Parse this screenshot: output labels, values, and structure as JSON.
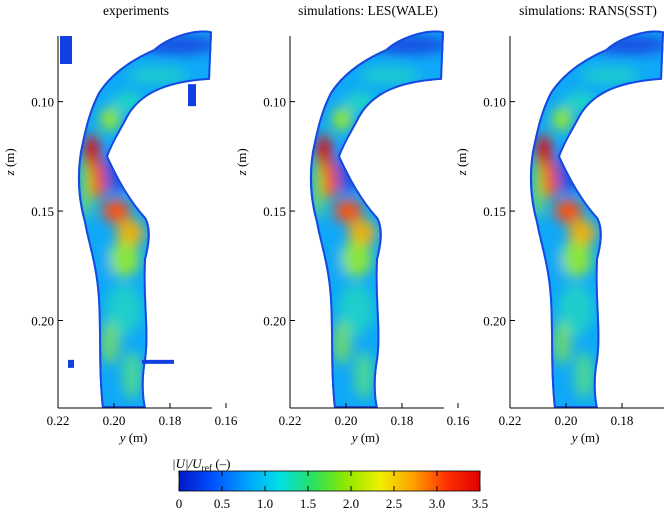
{
  "chart_data": {
    "type": "heatmap",
    "panels": [
      {
        "title": "experiments"
      },
      {
        "title": "simulations: LES(WALE)"
      },
      {
        "title": "simulations: RANS(SST)"
      }
    ],
    "xaxis": {
      "label_var": "y",
      "label_unit": " (m)",
      "ticks": [
        "0.22",
        "0.20",
        "0.18",
        "0.16"
      ],
      "tick_values": [
        0.22,
        0.2,
        0.18,
        0.16
      ],
      "range": [
        0.22,
        0.165
      ]
    },
    "yaxis": {
      "label_var": "z",
      "label_unit": " (m)",
      "ticks": [
        "0.10",
        "0.15",
        "0.20"
      ],
      "tick_values": [
        0.1,
        0.15,
        0.2
      ],
      "range": [
        0.07,
        0.24
      ]
    },
    "colorbar": {
      "label_abs": "|U|/U",
      "label_sub": "ref",
      "label_unit": " (–)",
      "ticks": [
        "0",
        "0.5",
        "1.0",
        "1.5",
        "2.0",
        "2.5",
        "3.0",
        "3.5"
      ],
      "range": [
        0,
        3.5
      ],
      "colors": [
        "#0018c8",
        "#0050ff",
        "#00a0ff",
        "#00e0e8",
        "#28e060",
        "#90e800",
        "#f0f000",
        "#ffa000",
        "#ff3000",
        "#e00000"
      ]
    },
    "colors": {
      "low": "#1848e0",
      "mid_low": "#10a8f8",
      "mid": "#20d8c0",
      "mid_high": "#a0f020",
      "high": "#ff5010",
      "peak": "#e01010"
    }
  }
}
